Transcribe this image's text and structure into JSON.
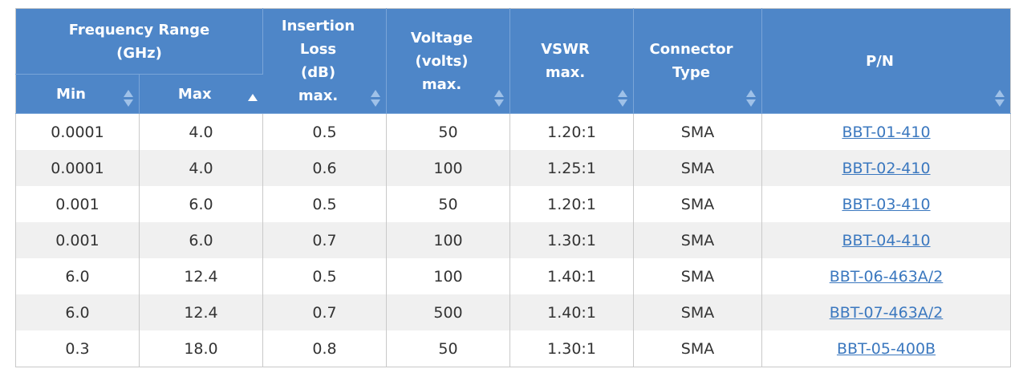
{
  "table": {
    "headers": {
      "freq_range_line1": "Frequency Range",
      "freq_range_line2": "(GHz)",
      "min": "Min",
      "max": "Max",
      "insertion_loss_line1": "Insertion",
      "insertion_loss_line2": "Loss",
      "insertion_loss_line3": "(dB)",
      "insertion_loss_line4": "max.",
      "voltage_line1": "Voltage",
      "voltage_line2": "(volts)",
      "voltage_line3": "max.",
      "vswr_line1": "VSWR",
      "vswr_line2": "max.",
      "connector_line1": "Connector",
      "connector_line2": "Type",
      "pn": "P/N"
    },
    "sorted_column": "max",
    "sort_direction": "ascending",
    "rows": [
      {
        "min": "0.0001",
        "max": "4.0",
        "loss": "0.5",
        "voltage": "50",
        "vswr": "1.20:1",
        "connector": "SMA",
        "pn": "BBT-01-410"
      },
      {
        "min": "0.0001",
        "max": "4.0",
        "loss": "0.6",
        "voltage": "100",
        "vswr": "1.25:1",
        "connector": "SMA",
        "pn": "BBT-02-410"
      },
      {
        "min": "0.001",
        "max": "6.0",
        "loss": "0.5",
        "voltage": "50",
        "vswr": "1.20:1",
        "connector": "SMA",
        "pn": "BBT-03-410"
      },
      {
        "min": "0.001",
        "max": "6.0",
        "loss": "0.7",
        "voltage": "100",
        "vswr": "1.30:1",
        "connector": "SMA",
        "pn": "BBT-04-410"
      },
      {
        "min": "6.0",
        "max": "12.4",
        "loss": "0.5",
        "voltage": "100",
        "vswr": "1.40:1",
        "connector": "SMA",
        "pn": "BBT-06-463A/2"
      },
      {
        "min": "6.0",
        "max": "12.4",
        "loss": "0.7",
        "voltage": "500",
        "vswr": "1.40:1",
        "connector": "SMA",
        "pn": "BBT-07-463A/2"
      },
      {
        "min": "0.3",
        "max": "18.0",
        "loss": "0.8",
        "voltage": "50",
        "vswr": "1.30:1",
        "connector": "SMA",
        "pn": "BBT-05-400B"
      }
    ]
  },
  "colors": {
    "header_bg": "#4e86c8",
    "header_text": "#ffffff",
    "row_alt_bg": "#f0f0f0",
    "link": "#3b78bf"
  },
  "icons": {
    "sort": "sort-arrows-icon",
    "sort_asc": "sort-ascending-icon"
  }
}
